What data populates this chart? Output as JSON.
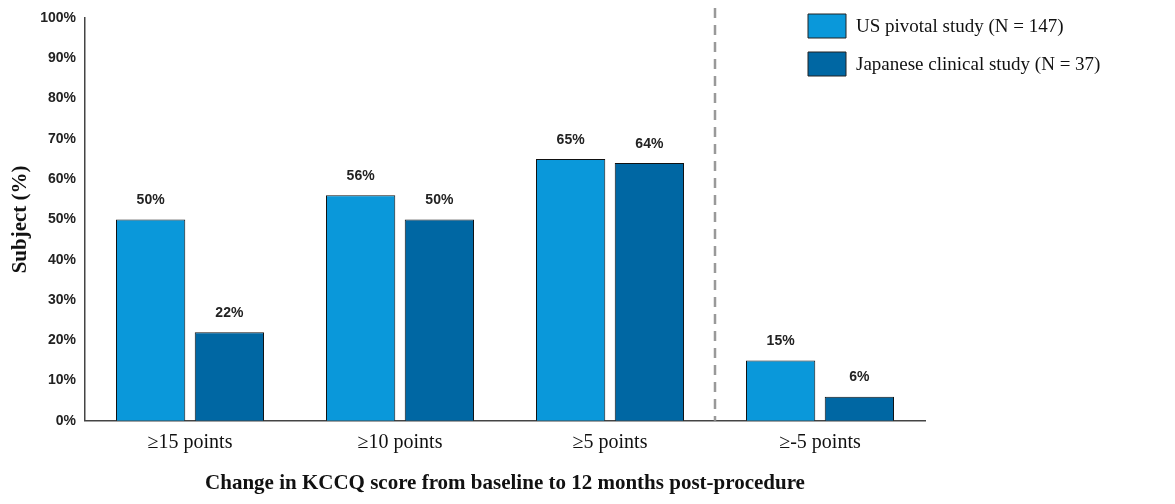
{
  "chart_data": {
    "type": "bar",
    "xlabel": "Change in KCCQ score from baseline to 12 months post-procedure",
    "ylabel": "Subject (%)",
    "categories": [
      "≥15 points",
      "≥10 points",
      "≥5 points",
      "≥-5 points"
    ],
    "series": [
      {
        "name": "US pivotal study (N = 147)",
        "color": "#0a98da",
        "values": [
          50,
          56,
          65,
          15
        ],
        "value_labels": [
          "50%",
          "56%",
          "65%",
          "15%"
        ]
      },
      {
        "name": "Japanese clinical study (N = 37)",
        "color": "#0067a3",
        "values": [
          22,
          50,
          64,
          6
        ],
        "value_labels": [
          "22%",
          "50%",
          "64%",
          "6%"
        ]
      }
    ],
    "ylim": [
      0,
      100
    ],
    "yticks": [
      {
        "value": 0,
        "label": "0%"
      },
      {
        "value": 10,
        "label": "10%"
      },
      {
        "value": 20,
        "label": "20%"
      },
      {
        "value": 30,
        "label": "30%"
      },
      {
        "value": 40,
        "label": "40%"
      },
      {
        "value": 50,
        "label": "50%"
      },
      {
        "value": 60,
        "label": "60%"
      },
      {
        "value": 70,
        "label": "70%"
      },
      {
        "value": 80,
        "label": "80%"
      },
      {
        "value": 90,
        "label": "90%"
      },
      {
        "value": 100,
        "label": "100%"
      }
    ],
    "grid": false,
    "legend": "top right"
  }
}
